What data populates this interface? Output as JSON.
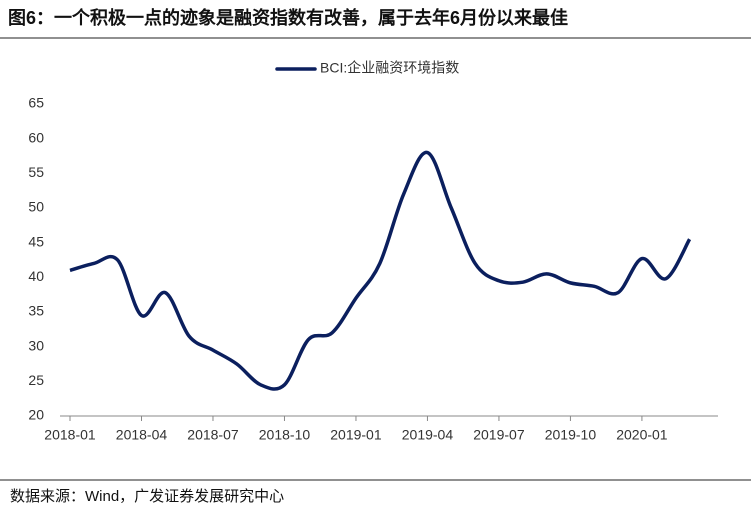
{
  "chart_data": {
    "type": "line",
    "title": "图6：一个积极一点的迹象是融资指数有改善，属于去年6月份以来最佳",
    "source": "数据来源：Wind，广发证券发展研究中心",
    "categories": [
      "2018-01",
      null,
      null,
      "2018-04",
      null,
      null,
      "2018-07",
      null,
      null,
      "2018-10",
      null,
      null,
      "2019-01",
      null,
      null,
      "2019-04",
      null,
      null,
      "2019-07",
      null,
      null,
      "2019-10",
      null,
      null,
      "2020-01",
      null,
      null
    ],
    "series": [
      {
        "name": "BCI:企业融资环境指数",
        "color": "#0b1f5e",
        "values": [
          41,
          42,
          42.5,
          34.5,
          37.8,
          31.5,
          29.5,
          27.5,
          24.5,
          24.5,
          31,
          32,
          37,
          42,
          52,
          58,
          50,
          42,
          39.5,
          39.3,
          40.5,
          39.2,
          38.7,
          37.8,
          42.7,
          39.8,
          45.5
        ]
      }
    ],
    "ylim": [
      20,
      65
    ],
    "yticks": [
      20,
      25,
      30,
      35,
      40,
      45,
      50,
      55,
      60,
      65
    ],
    "legend": "top"
  }
}
